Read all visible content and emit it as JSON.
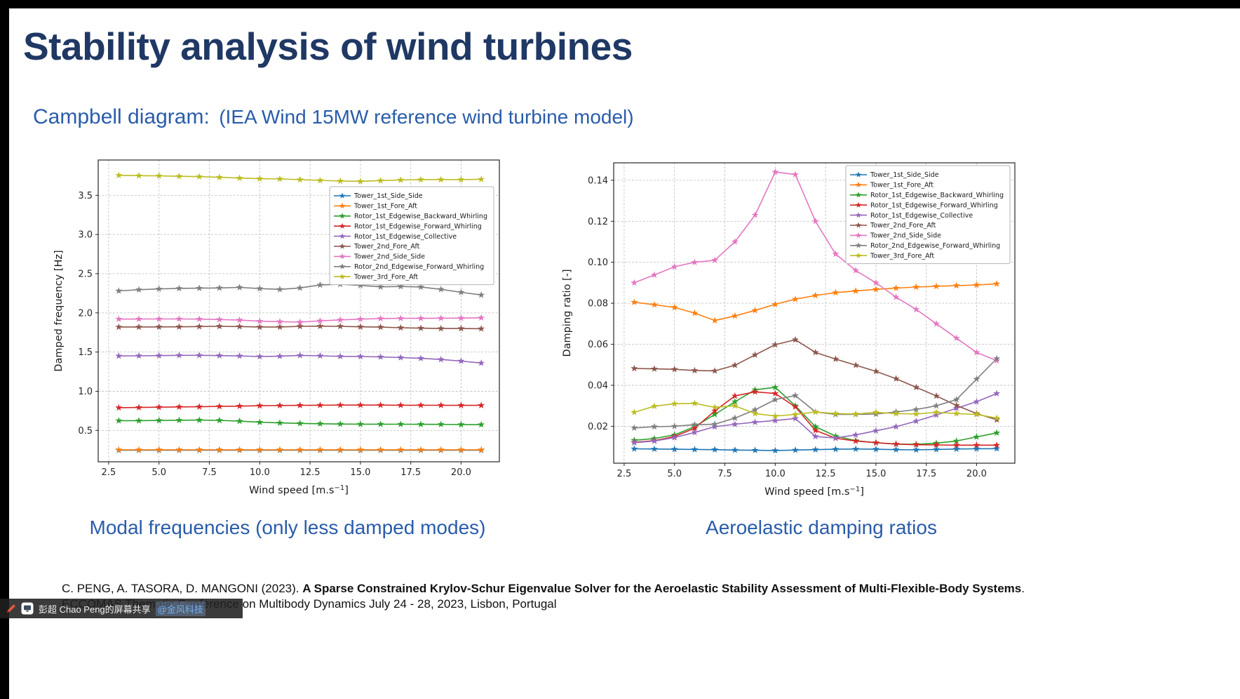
{
  "page": {
    "title": "Stability analysis of wind turbines",
    "subtitle": {
      "main": "Campbell diagram:",
      "detail": "(IEA Wind 15MW reference wind turbine model)"
    },
    "captions": {
      "left": "Modal frequencies (only less damped modes)",
      "right": "Aeroelastic damping ratios"
    },
    "citation": {
      "prefix": "C. PENG, A. TASORA, D. MANGONI (2023). ",
      "bold": "A Sparse Constrained Krylov-Schur Eigenvalue Solver for the Aeroelastic Stability Assessment of Multi-Flexible-Body Systems",
      "suffix": ". ECCOMAS Thematic Conference on Multibody Dynamics July 24 - 28, 2023, Lisbon, Portugal"
    },
    "colors": {
      "title": "#1f3864",
      "subtitle": "#2a5caa",
      "caption": "#2a5caa"
    }
  },
  "overlay": {
    "sharer_text": "彭超 Chao Peng的屏幕共享",
    "mention": "@金风科技"
  },
  "chart_data": [
    {
      "type": "line",
      "title": "",
      "xlabel": {
        "pre": "Wind speed [m.s",
        "sup": "−1",
        "post": "]"
      },
      "ylabel": "Damped frequency [Hz]",
      "x": [
        3,
        4,
        5,
        6,
        7,
        8,
        9,
        10,
        11,
        12,
        13,
        14,
        15,
        16,
        17,
        18,
        19,
        20,
        21
      ],
      "xlim": [
        1.98,
        21.9
      ],
      "ylim": [
        0.1,
        3.95
      ],
      "xticks": [
        2.5,
        5,
        7.5,
        10,
        12.5,
        15,
        17.5,
        20
      ],
      "xtick_labels": [
        "2.5",
        "5.0",
        "7.5",
        "10.0",
        "12.5",
        "15.0",
        "17.5",
        "20.0"
      ],
      "yticks": [
        0.5,
        1.0,
        1.5,
        2.0,
        2.5,
        3.0,
        3.5
      ],
      "ytick_labels": [
        "0.5",
        "1.0",
        "1.5",
        "2.0",
        "2.5",
        "3.0",
        "3.5"
      ],
      "grid": true,
      "marker": "star",
      "legend_loc": "center right inside",
      "series": [
        {
          "name": "Tower_1st_Side_Side",
          "color": "#1f77b4",
          "values": [
            0.248,
            0.248,
            0.248,
            0.248,
            0.248,
            0.248,
            0.248,
            0.248,
            0.248,
            0.248,
            0.248,
            0.248,
            0.248,
            0.248,
            0.248,
            0.248,
            0.248,
            0.248,
            0.248
          ]
        },
        {
          "name": "Tower_1st_Fore_Aft",
          "color": "#ff7f0e",
          "values": [
            0.253,
            0.253,
            0.253,
            0.253,
            0.253,
            0.253,
            0.253,
            0.253,
            0.253,
            0.253,
            0.253,
            0.253,
            0.253,
            0.253,
            0.253,
            0.253,
            0.253,
            0.253,
            0.253
          ]
        },
        {
          "name": "Rotor_1st_Edgewise_Backward_Whirling",
          "color": "#2ca02c",
          "values": [
            0.625,
            0.625,
            0.627,
            0.63,
            0.632,
            0.628,
            0.618,
            0.605,
            0.596,
            0.59,
            0.585,
            0.582,
            0.58,
            0.58,
            0.579,
            0.578,
            0.577,
            0.575,
            0.574
          ]
        },
        {
          "name": "Rotor_1st_Edgewise_Forward_Whirling",
          "color": "#d62728",
          "values": [
            0.79,
            0.793,
            0.797,
            0.8,
            0.802,
            0.806,
            0.81,
            0.815,
            0.818,
            0.82,
            0.822,
            0.823,
            0.823,
            0.823,
            0.822,
            0.822,
            0.821,
            0.82,
            0.82
          ]
        },
        {
          "name": "Rotor_1st_Edgewise_Collective",
          "color": "#9467bd",
          "values": [
            1.45,
            1.452,
            1.455,
            1.458,
            1.458,
            1.455,
            1.45,
            1.443,
            1.447,
            1.457,
            1.452,
            1.445,
            1.443,
            1.438,
            1.43,
            1.42,
            1.405,
            1.385,
            1.36
          ]
        },
        {
          "name": "Tower_2nd_Fore_Aft",
          "color": "#8c564b",
          "values": [
            1.82,
            1.82,
            1.821,
            1.822,
            1.825,
            1.828,
            1.825,
            1.82,
            1.82,
            1.828,
            1.83,
            1.828,
            1.822,
            1.818,
            1.81,
            1.805,
            1.8,
            1.8,
            1.798
          ]
        },
        {
          "name": "Tower_2nd_Side_Side",
          "color": "#e377c2",
          "values": [
            1.92,
            1.921,
            1.922,
            1.922,
            1.92,
            1.915,
            1.908,
            1.893,
            1.888,
            1.882,
            1.898,
            1.91,
            1.92,
            1.927,
            1.93,
            1.93,
            1.932,
            1.933,
            1.937
          ]
        },
        {
          "name": "Rotor_2nd_Edgewise_Forward_Whirling",
          "color": "#7f7f7f",
          "values": [
            2.28,
            2.295,
            2.305,
            2.312,
            2.315,
            2.318,
            2.325,
            2.31,
            2.3,
            2.318,
            2.355,
            2.365,
            2.35,
            2.332,
            2.337,
            2.33,
            2.3,
            2.262,
            2.228
          ]
        },
        {
          "name": "Tower_3rd_Fore_Aft",
          "color": "#bcbd22",
          "values": [
            3.755,
            3.75,
            3.748,
            3.742,
            3.738,
            3.73,
            3.72,
            3.712,
            3.708,
            3.7,
            3.69,
            3.682,
            3.678,
            3.688,
            3.695,
            3.7,
            3.7,
            3.7,
            3.705
          ]
        }
      ]
    },
    {
      "type": "line",
      "title": "",
      "xlabel": {
        "pre": "Wind speed [m.s",
        "sup": "−1",
        "post": "]"
      },
      "ylabel": "Damping ratio [-]",
      "x": [
        3,
        4,
        5,
        6,
        7,
        8,
        9,
        10,
        11,
        12,
        13,
        14,
        15,
        16,
        17,
        18,
        19,
        20,
        21
      ],
      "xlim": [
        1.98,
        21.9
      ],
      "ylim": [
        0.002,
        0.1485
      ],
      "xticks": [
        2.5,
        5,
        7.5,
        10,
        12.5,
        15,
        17.5,
        20
      ],
      "xtick_labels": [
        "2.5",
        "5.0",
        "7.5",
        "10.0",
        "12.5",
        "15.0",
        "17.5",
        "20.0"
      ],
      "yticks": [
        0.02,
        0.04,
        0.06,
        0.08,
        0.1,
        0.12,
        0.14
      ],
      "ytick_labels": [
        "0.02",
        "0.04",
        "0.06",
        "0.08",
        "0.10",
        "0.12",
        "0.14"
      ],
      "grid": true,
      "marker": "star",
      "legend_loc": "upper right",
      "series": [
        {
          "name": "Tower_1st_Side_Side",
          "color": "#1f77b4",
          "values": [
            0.009,
            0.0089,
            0.0088,
            0.0087,
            0.0086,
            0.0084,
            0.0083,
            0.0082,
            0.0084,
            0.0086,
            0.0088,
            0.0089,
            0.0088,
            0.0086,
            0.0085,
            0.0087,
            0.0089,
            0.009,
            0.0091
          ]
        },
        {
          "name": "Tower_1st_Fore_Aft",
          "color": "#ff7f0e",
          "values": [
            0.0805,
            0.0793,
            0.078,
            0.0752,
            0.0716,
            0.0738,
            0.0765,
            0.0795,
            0.082,
            0.0838,
            0.0852,
            0.086,
            0.0868,
            0.0874,
            0.0879,
            0.0883,
            0.0886,
            0.0889,
            0.0895
          ]
        },
        {
          "name": "Rotor_1st_Edgewise_Backward_Whirling",
          "color": "#2ca02c",
          "values": [
            0.0132,
            0.014,
            0.0158,
            0.0198,
            0.0258,
            0.032,
            0.0378,
            0.039,
            0.03,
            0.0198,
            0.0152,
            0.013,
            0.012,
            0.0113,
            0.0112,
            0.0118,
            0.0128,
            0.0148,
            0.0168
          ]
        },
        {
          "name": "Rotor_1st_Edgewise_Forward_Whirling",
          "color": "#d62728",
          "values": [
            0.0122,
            0.013,
            0.015,
            0.019,
            0.0275,
            0.0348,
            0.0368,
            0.036,
            0.0295,
            0.018,
            0.0142,
            0.0128,
            0.012,
            0.0113,
            0.011,
            0.0109,
            0.0108,
            0.0108,
            0.0108
          ]
        },
        {
          "name": "Rotor_1st_Edgewise_Collective",
          "color": "#9467bd",
          "values": [
            0.012,
            0.0128,
            0.0145,
            0.017,
            0.0198,
            0.021,
            0.022,
            0.0228,
            0.0238,
            0.015,
            0.0143,
            0.0158,
            0.0178,
            0.0198,
            0.0225,
            0.0255,
            0.0288,
            0.032,
            0.036
          ]
        },
        {
          "name": "Tower_2nd_Fore_Aft",
          "color": "#8c564b",
          "values": [
            0.0482,
            0.048,
            0.0478,
            0.0472,
            0.047,
            0.0498,
            0.0548,
            0.0598,
            0.0622,
            0.056,
            0.0528,
            0.0498,
            0.0468,
            0.0432,
            0.039,
            0.0348,
            0.0302,
            0.0262,
            0.0232
          ]
        },
        {
          "name": "Tower_2nd_Side_Side",
          "color": "#e377c2",
          "values": [
            0.09,
            0.0938,
            0.0978,
            0.1,
            0.101,
            0.11,
            0.123,
            0.144,
            0.1428,
            0.12,
            0.104,
            0.096,
            0.09,
            0.083,
            0.077,
            0.07,
            0.063,
            0.056,
            0.052
          ]
        },
        {
          "name": "Rotor_2nd_Edgewise_Forward_Whirling",
          "color": "#7f7f7f",
          "values": [
            0.0192,
            0.0198,
            0.02,
            0.0208,
            0.021,
            0.024,
            0.028,
            0.033,
            0.035,
            0.027,
            0.0258,
            0.0258,
            0.026,
            0.027,
            0.0282,
            0.03,
            0.033,
            0.043,
            0.053
          ]
        },
        {
          "name": "Tower_3rd_Fore_Aft",
          "color": "#bcbd22",
          "values": [
            0.0268,
            0.0298,
            0.031,
            0.0312,
            0.0292,
            0.03,
            0.0262,
            0.025,
            0.0258,
            0.027,
            0.0262,
            0.026,
            0.0268,
            0.0262,
            0.026,
            0.0268,
            0.0262,
            0.0258,
            0.024
          ]
        }
      ]
    }
  ]
}
